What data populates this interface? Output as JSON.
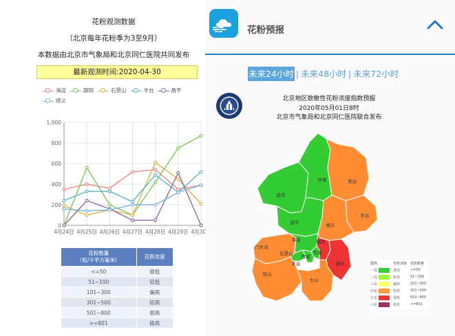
{
  "left": {
    "title_line1": "花粉观测数据",
    "title_line2": "（北京每年花粉季为3至9月）",
    "title_line3": "本数据由北京市气象局和北京同仁医院共同发布",
    "latest_time": "最新观测时间:2020-04-30"
  },
  "chart_data": {
    "type": "line",
    "categories": [
      "4月24日",
      "4月25日",
      "4月26日",
      "4月27日",
      "4月28日",
      "4月29日",
      "4月30日"
    ],
    "ylim": [
      0,
      1000
    ],
    "yticks": [
      "0",
      "200",
      "400",
      "600",
      "800",
      "1,000"
    ],
    "legend_position": "top",
    "grid": true,
    "series": [
      {
        "name": "海淀",
        "color": "#e88686",
        "values": [
          350,
          400,
          360,
          520,
          540,
          350,
          390
        ]
      },
      {
        "name": "朝阳",
        "color": "#7cc55a",
        "values": [
          0,
          560,
          200,
          100,
          420,
          750,
          870
        ]
      },
      {
        "name": "石景山",
        "color": "#e2b246",
        "values": [
          190,
          100,
          150,
          100,
          610,
          450,
          210
        ]
      },
      {
        "name": "丰台",
        "color": "#5ab3c8",
        "values": [
          240,
          330,
          330,
          230,
          490,
          320,
          520
        ]
      },
      {
        "name": "昌平",
        "color": "#8f6aa3",
        "values": [
          0,
          240,
          160,
          50,
          50,
          510,
          0
        ]
      },
      {
        "name": "顺义",
        "color": "#7ab4e2",
        "values": [
          160,
          140,
          150,
          200,
          200,
          320,
          390
        ]
      }
    ]
  },
  "level_table": {
    "header_amount": "花粉数量",
    "header_unit": "（粒/千平方毫米）",
    "header_level": "花粉浓度",
    "rows": [
      {
        "range": "<=50",
        "level": "很低"
      },
      {
        "range": "51~100",
        "level": "较低"
      },
      {
        "range": "101~300",
        "level": "偏高"
      },
      {
        "range": "301~500",
        "level": "较高"
      },
      {
        "range": "501~800",
        "level": "很高"
      },
      {
        "range": ">=801",
        "level": "极高"
      }
    ]
  },
  "right": {
    "app_title": "花粉预报",
    "tabs": [
      {
        "label": "未来24小时",
        "active": true
      },
      {
        "label": "未来48小时",
        "active": false
      },
      {
        "label": "未来72小时",
        "active": false
      }
    ],
    "tab_separator": "|",
    "map_title_line1": "北京地区致敏性花粉浓度指数预报",
    "map_title_line2": "2020年05月01日8时",
    "map_title_line3": "北京市气象局和北京同仁医院联合发布",
    "districts": {
      "yanqing": "延庆",
      "huairou": "怀柔",
      "miyun": "密云",
      "pinggu": "平谷",
      "changping": "昌平",
      "shunyi": "顺义",
      "mentougou": "门头沟",
      "haidian": "海淀",
      "chaoyang": "朝阳",
      "shijingshan": "石景山",
      "xicheng": "西城",
      "dongcheng": "东城",
      "fengtai": "丰台",
      "tongzhou": "通州",
      "fangshan": "房山",
      "daxing": "大兴"
    },
    "map_legend": {
      "head": "图例",
      "col2": "花粉浓度",
      "col3": "花粉数量",
      "rows": [
        {
          "level": "一级",
          "color": "#33cc33",
          "category": "很低",
          "range": "<=50"
        },
        {
          "level": "二级",
          "color": "#99ff33",
          "category": "较低",
          "range": "51~100"
        },
        {
          "level": "三级",
          "color": "#ffff66",
          "category": "偏高",
          "range": "101~300"
        },
        {
          "level": "四级",
          "color": "#ff9933",
          "category": "较高",
          "range": "301~500"
        },
        {
          "level": "五级",
          "color": "#ee3333",
          "category": "很高",
          "range": "501~800"
        },
        {
          "level": "六级",
          "color": "#993366",
          "category": "极高",
          "range": ">=801"
        }
      ]
    }
  }
}
